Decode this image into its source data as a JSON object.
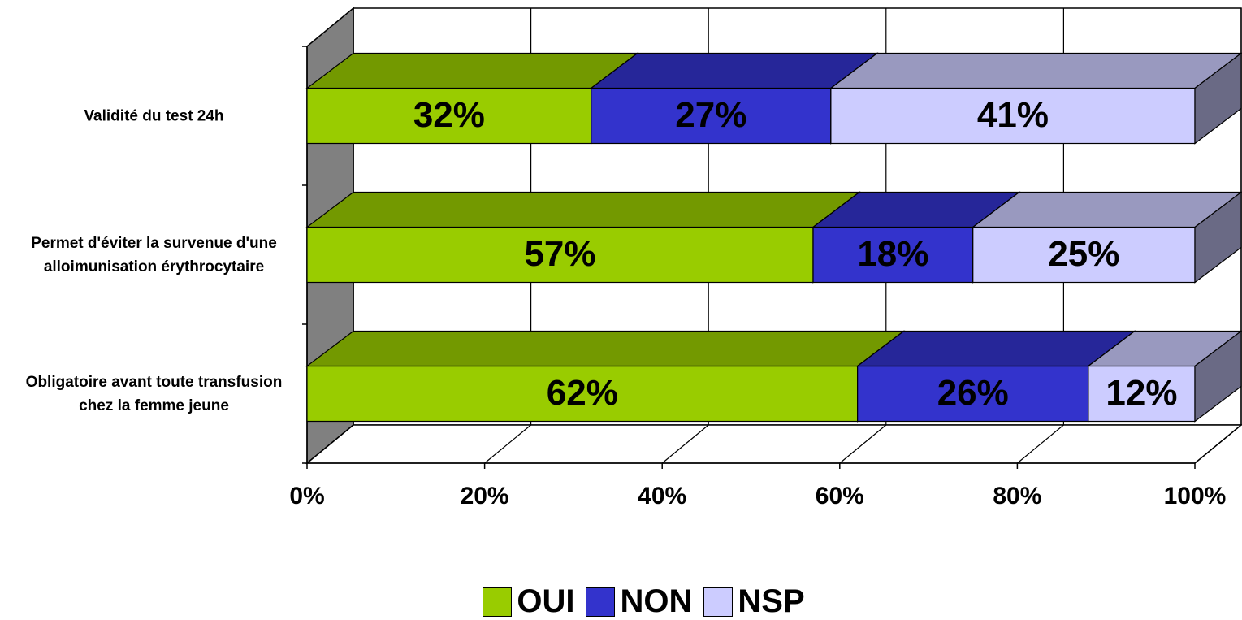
{
  "chart_data": {
    "type": "stacked-bar-3d",
    "categories": [
      "Validité du test 24h",
      "Permet d'éviter la survenue d'une alloimunisation érythrocytaire",
      "Obligatoire avant toute transfusion chez la femme jeune"
    ],
    "series": [
      {
        "name": "OUI",
        "color": "#99cc00",
        "values": [
          32,
          57,
          62
        ],
        "value_labels": [
          "32%",
          "57%",
          "62%"
        ]
      },
      {
        "name": "NON",
        "color": "#3333cc",
        "values": [
          27,
          18,
          26
        ],
        "value_labels": [
          "27%",
          "18%",
          "26%"
        ]
      },
      {
        "name": "NSP",
        "color": "#ccccff",
        "values": [
          41,
          25,
          12
        ],
        "value_labels": [
          "41%",
          "25%",
          "12%"
        ]
      }
    ],
    "xlim": [
      0,
      100
    ],
    "xticks": [
      {
        "value": 0,
        "label": "0%"
      },
      {
        "value": 20,
        "label": "20%"
      },
      {
        "value": 40,
        "label": "40%"
      },
      {
        "value": 60,
        "label": "60%"
      },
      {
        "value": 80,
        "label": "80%"
      },
      {
        "value": 100,
        "label": "100%"
      }
    ],
    "grid": true,
    "legend": "bottom"
  }
}
